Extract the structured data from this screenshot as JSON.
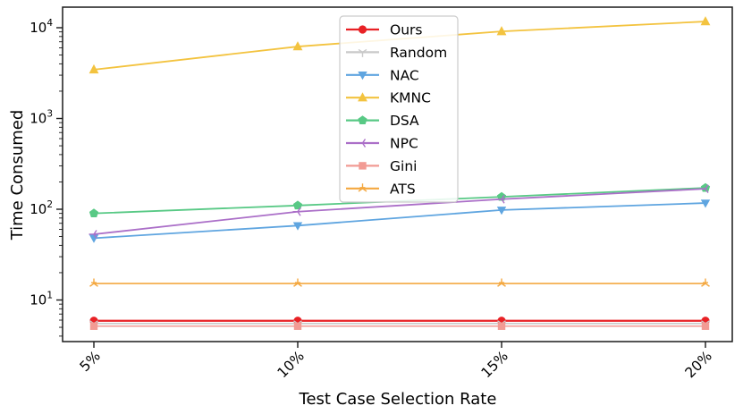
{
  "figure": {
    "background": "#ffffff",
    "axis_color": "#1a1a1a",
    "legend_border_color": "#cccccc",
    "legend_fill": "#ffffff"
  },
  "chart_data": {
    "type": "line",
    "title": "",
    "xlabel": "Test Case Selection Rate",
    "ylabel": "Time Consumed",
    "yscale": "log",
    "ylim": [
      3.5,
      16800
    ],
    "grid": false,
    "legend_position": "upper center",
    "categories": [
      "5%",
      "10%",
      "15%",
      "20%"
    ],
    "x_tick_labels": [
      "5%",
      "10%",
      "15%",
      "20%"
    ],
    "y_tick_values": [
      10,
      100,
      1000,
      10000
    ],
    "y_tick_labels": [
      "10^1",
      "10^2",
      "10^3",
      "10^4"
    ],
    "series": [
      {
        "name": "Ours",
        "color": "#e82125",
        "marker": "circle",
        "line_width": 2.2,
        "values": [
          5.9,
          5.9,
          5.9,
          5.9
        ]
      },
      {
        "name": "Random",
        "color": "#c9c9c9",
        "marker": "tri-down-thin",
        "line_width": 1.6,
        "values": [
          5.5,
          5.5,
          5.5,
          5.5
        ]
      },
      {
        "name": "NAC",
        "color": "#5fa5e0",
        "marker": "triangle-down",
        "line_width": 1.8,
        "values": [
          48,
          66,
          98,
          117
        ]
      },
      {
        "name": "KMNC",
        "color": "#f3c33f",
        "marker": "triangle-up",
        "line_width": 1.8,
        "values": [
          3450,
          6200,
          9100,
          11700
        ]
      },
      {
        "name": "DSA",
        "color": "#58c985",
        "marker": "pentagon",
        "line_width": 1.8,
        "values": [
          90,
          110,
          137,
          172
        ]
      },
      {
        "name": "NPC",
        "color": "#ab6fc8",
        "marker": "tri-left-thin",
        "line_width": 1.8,
        "values": [
          53,
          94,
          129,
          168
        ]
      },
      {
        "name": "Gini",
        "color": "#f29b94",
        "marker": "square",
        "line_width": 1.6,
        "values": [
          5.15,
          5.15,
          5.15,
          5.15
        ]
      },
      {
        "name": "ATS",
        "color": "#f4a840",
        "marker": "star-thin",
        "line_width": 1.6,
        "values": [
          15.2,
          15.2,
          15.2,
          15.2
        ]
      }
    ]
  }
}
